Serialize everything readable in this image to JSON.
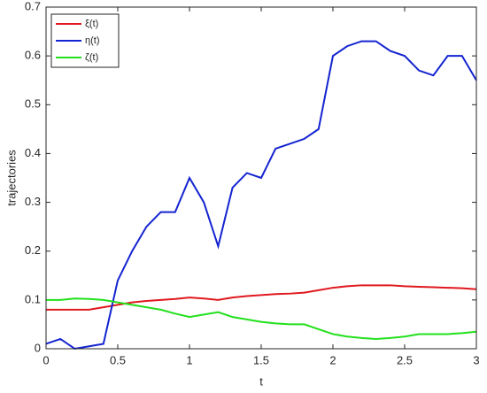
{
  "chart_data": {
    "type": "line",
    "xlabel": "t",
    "ylabel": "trajectories",
    "x": [
      0,
      0.1,
      0.2,
      0.3,
      0.4,
      0.5,
      0.6,
      0.7,
      0.8,
      0.9,
      1,
      1.1,
      1.2,
      1.3,
      1.4,
      1.5,
      1.6,
      1.7,
      1.8,
      1.9,
      2,
      2.1,
      2.2,
      2.3,
      2.4,
      2.5,
      2.6,
      2.7,
      2.8,
      2.9,
      3
    ],
    "series": [
      {
        "name": "ξ(t)",
        "color": "#e0191f",
        "values": [
          0.08,
          0.08,
          0.08,
          0.08,
          0.085,
          0.09,
          0.095,
          0.098,
          0.1,
          0.102,
          0.105,
          0.103,
          0.1,
          0.105,
          0.108,
          0.11,
          0.112,
          0.113,
          0.115,
          0.12,
          0.125,
          0.128,
          0.13,
          0.13,
          0.13,
          0.128,
          0.127,
          0.126,
          0.125,
          0.124,
          0.122
        ]
      },
      {
        "name": "η(t)",
        "color": "#1424d0",
        "values": [
          0.01,
          0.02,
          0,
          0.005,
          0.01,
          0.14,
          0.2,
          0.25,
          0.28,
          0.28,
          0.35,
          0.3,
          0.21,
          0.33,
          0.36,
          0.35,
          0.41,
          0.42,
          0.43,
          0.45,
          0.6,
          0.62,
          0.63,
          0.63,
          0.61,
          0.6,
          0.57,
          0.56,
          0.6,
          0.6,
          0.55
        ]
      },
      {
        "name": "ζ(t)",
        "color": "#22e01c",
        "values": [
          0.1,
          0.1,
          0.103,
          0.102,
          0.1,
          0.095,
          0.09,
          0.085,
          0.08,
          0.072,
          0.065,
          0.07,
          0.075,
          0.065,
          0.06,
          0.055,
          0.052,
          0.05,
          0.05,
          0.04,
          0.03,
          0.025,
          0.022,
          0.02,
          0.022,
          0.025,
          0.03,
          0.03,
          0.03,
          0.032,
          0.035
        ]
      }
    ],
    "xlim": [
      0,
      3
    ],
    "xticks": [
      0,
      0.5,
      1,
      1.5,
      2,
      2.5,
      3
    ],
    "ylim": [
      0,
      0.7
    ],
    "yticks": [
      0,
      0.1,
      0.2,
      0.3,
      0.4,
      0.5,
      0.6,
      0.7
    ],
    "legend": "upper left"
  }
}
